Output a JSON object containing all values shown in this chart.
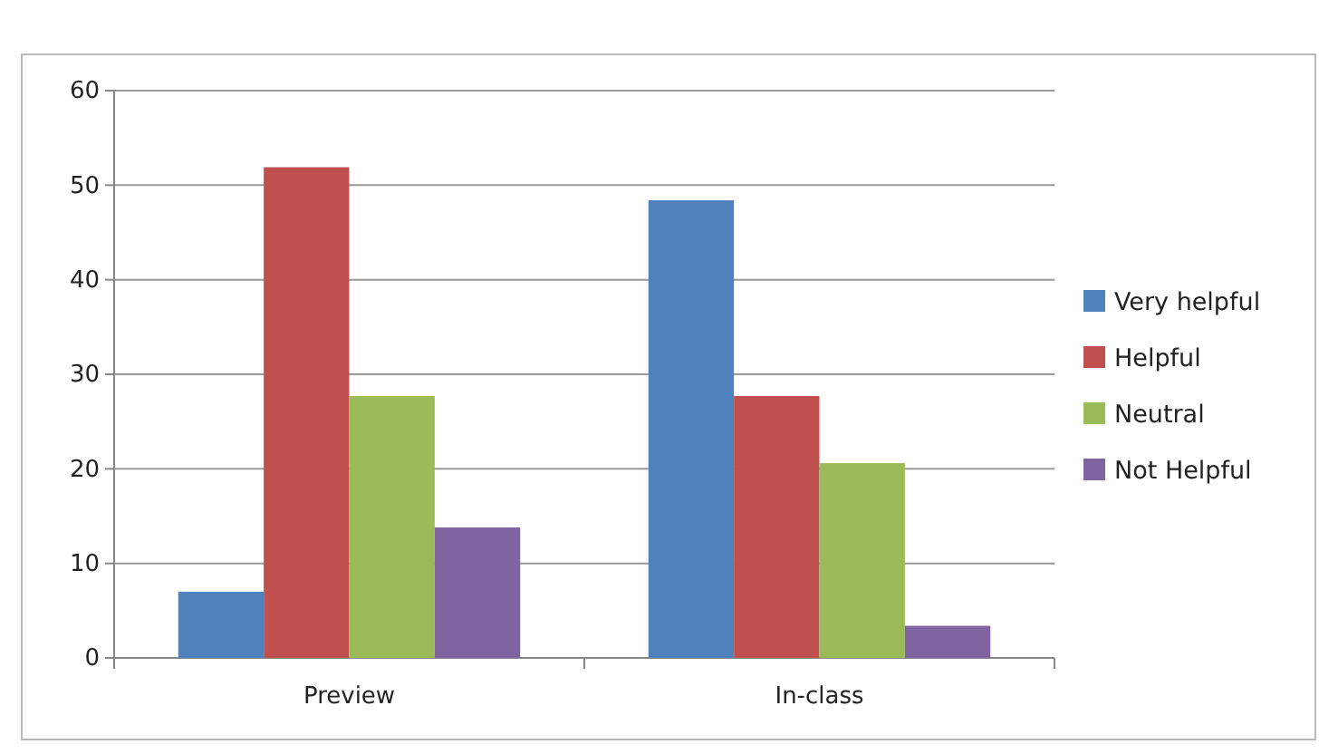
{
  "chart_data": {
    "type": "bar",
    "categories": [
      "Preview",
      "In-class"
    ],
    "series": [
      {
        "name": "Very helpful",
        "color": "#4f81bd",
        "values": [
          7,
          48.4
        ]
      },
      {
        "name": "Helpful",
        "color": "#c0504d",
        "values": [
          51.9,
          27.7
        ]
      },
      {
        "name": "Neutral",
        "color": "#9bbb59",
        "values": [
          27.7,
          20.6
        ]
      },
      {
        "name": "Not Helpful",
        "color": "#8064a2",
        "values": [
          13.8,
          3.4
        ]
      }
    ],
    "ylim": [
      0,
      60
    ],
    "yticks": [
      0,
      10,
      20,
      30,
      40,
      50,
      60
    ],
    "grid": "y",
    "legend": "right"
  }
}
